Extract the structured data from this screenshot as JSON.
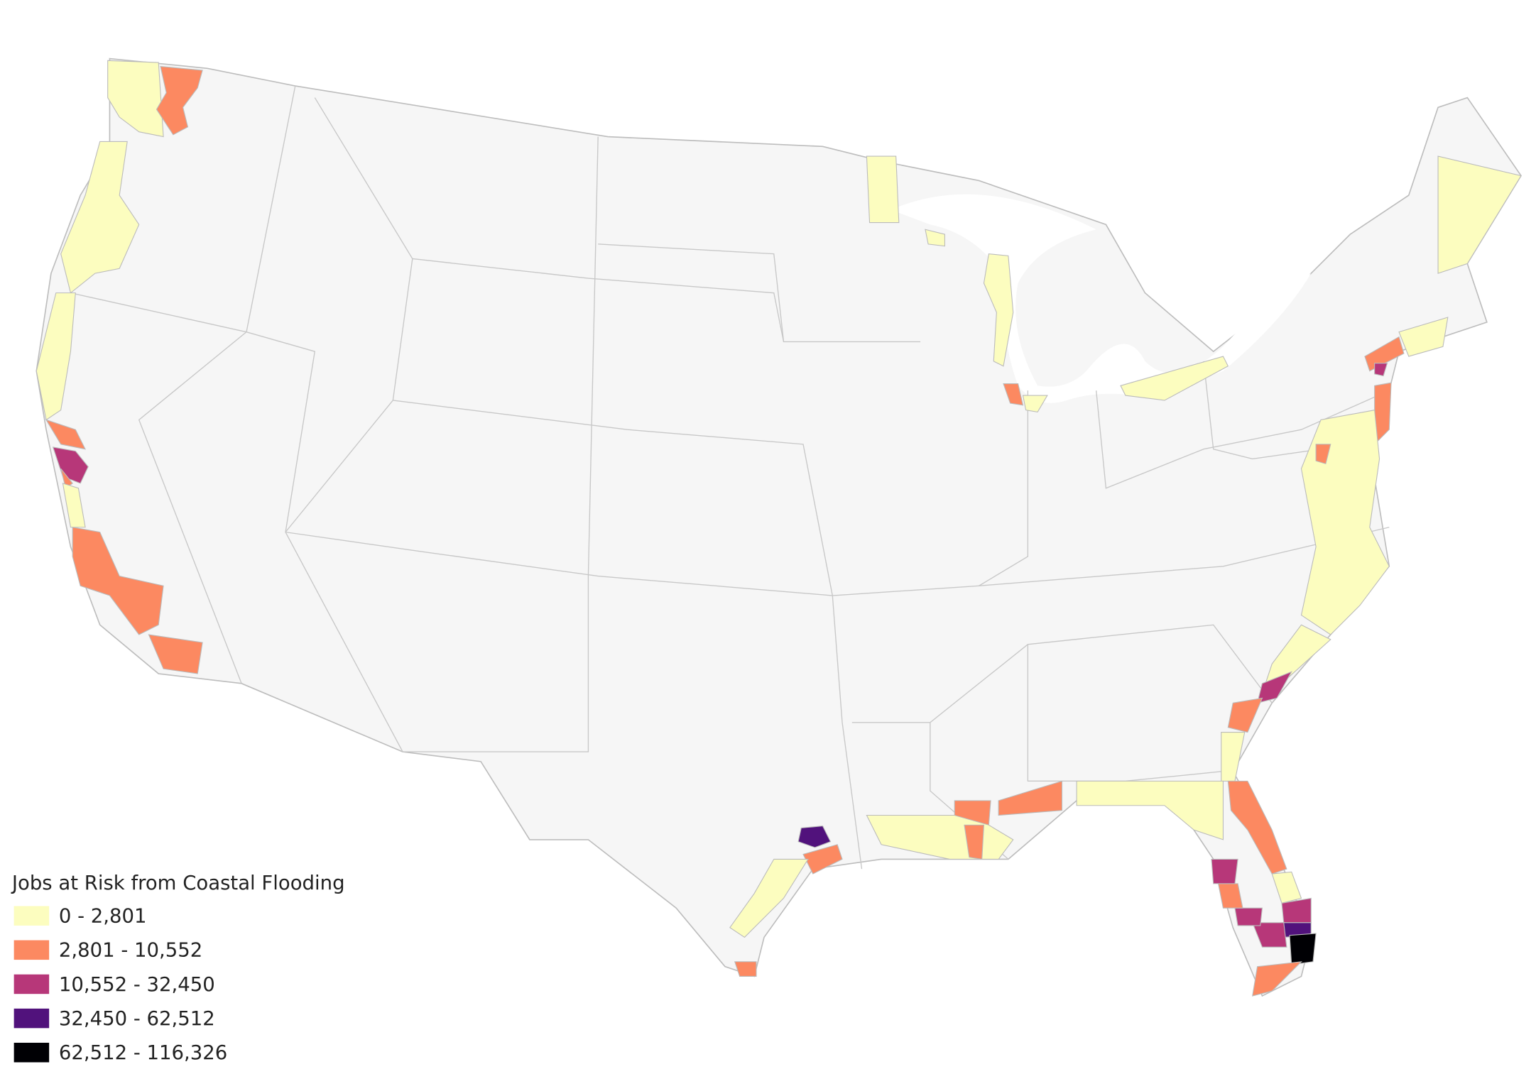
{
  "legend": {
    "title": "Jobs at Risk from Coastal Flooding",
    "items": [
      {
        "label": "0 - 2,801",
        "color": "#fcfdbf"
      },
      {
        "label": "2,801 - 10,552",
        "color": "#fc8961"
      },
      {
        "label": "10,552 - 32,450",
        "color": "#b73779"
      },
      {
        "label": "32,450 - 62,512",
        "color": "#51127c"
      },
      {
        "label": "62,512 - 116,326",
        "color": "#000004"
      }
    ]
  }
}
